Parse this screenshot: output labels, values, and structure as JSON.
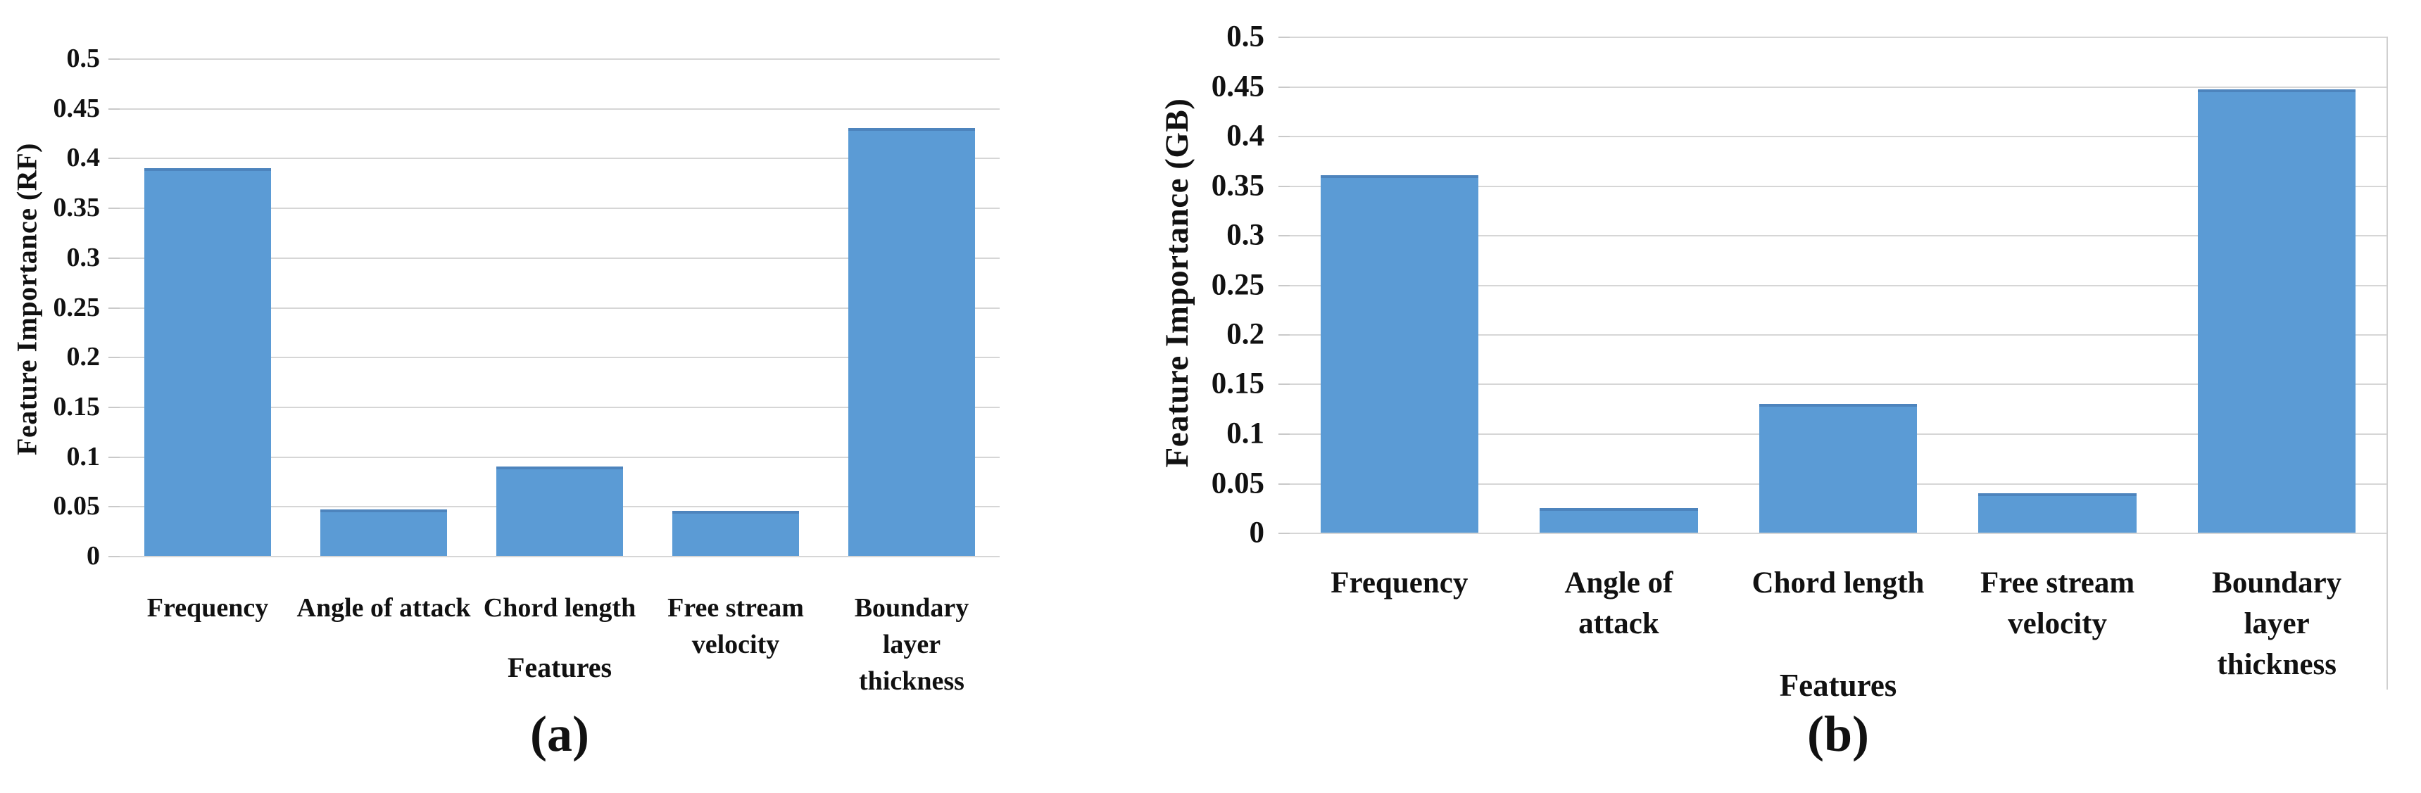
{
  "figure": {
    "background": "#ffffff",
    "bar_color": "#5b9bd5",
    "bar_top_edge_color": "#4d84bd",
    "gridline_color": "#d6d6d6",
    "axis_text_color": "#111111"
  },
  "chart_data": [
    {
      "type": "bar",
      "panel": "a",
      "caption": "(a)",
      "title": "",
      "ylabel": "Feature Importance (RF)",
      "xlabel": "Features",
      "categories": [
        "Frequency",
        "Angle of attack",
        "Chord length",
        "Free stream\nvelocity",
        "Boundary layer\nthickness"
      ],
      "values": [
        0.39,
        0.047,
        0.09,
        0.045,
        0.43
      ],
      "ylim": [
        0,
        0.5
      ],
      "ytick_step": 0.05,
      "yticks": [
        "0.5",
        "0.45",
        "0.4",
        "0.35",
        "0.3",
        "0.25",
        "0.2",
        "0.15",
        "0.1",
        "0.05",
        "0"
      ],
      "grid": "horizontal",
      "legend": "none"
    },
    {
      "type": "bar",
      "panel": "b",
      "caption": "(b)",
      "title": "",
      "ylabel": "Feature Importance (GB)",
      "xlabel": "Features",
      "categories": [
        "Frequency",
        "Angle of\nattack",
        "Chord length",
        "Free stream\nvelocity",
        "Boundary\nlayer\nthickness"
      ],
      "values": [
        0.36,
        0.025,
        0.13,
        0.04,
        0.447
      ],
      "ylim": [
        0,
        0.5
      ],
      "ytick_step": 0.05,
      "yticks": [
        "0.5",
        "0.45",
        "0.4",
        "0.35",
        "0.3",
        "0.25",
        "0.2",
        "0.15",
        "0.1",
        "0.05",
        "0"
      ],
      "grid": "horizontal",
      "legend": "none"
    }
  ]
}
